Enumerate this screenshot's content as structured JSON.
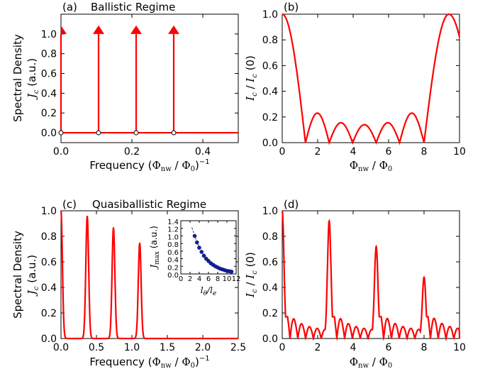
{
  "chart_data": [
    {
      "panel": "(a)",
      "title": "Ballistic Regime",
      "type": "stem",
      "xlabel": "Frequency (Φ_nw / Φ_0)^{-1}",
      "ylabel_lines": [
        "Spectral Density",
        "J_c (a.u.)"
      ],
      "xlim": [
        0,
        0.5
      ],
      "ylim": [
        -0.1,
        1.2
      ],
      "xticks": [
        "0.0",
        "0.2",
        "0.4"
      ],
      "yticks": [
        "0.0",
        "0.2",
        "0.4",
        "0.6",
        "0.8",
        "1.0"
      ],
      "x": [
        0,
        0.106,
        0.212,
        0.318
      ],
      "values": [
        1,
        1,
        1,
        1
      ],
      "color": "#ff0000"
    },
    {
      "panel": "(b)",
      "type": "line",
      "xlabel": "Φ_nw / Φ_0",
      "ylabel": "I_c / I_c (0)",
      "xlim": [
        0,
        10
      ],
      "ylim": [
        0,
        1.0
      ],
      "xticks": [
        "0",
        "2",
        "4",
        "6",
        "8",
        "10"
      ],
      "yticks": [
        "0.0",
        "0.2",
        "0.4",
        "0.6",
        "0.8",
        "1.0"
      ],
      "x": [
        0,
        0.4,
        0.8,
        1.31,
        1.5,
        2.0,
        2.5,
        2.65,
        3.0,
        3.3,
        3.7,
        3.97,
        4.4,
        4.6,
        4.9,
        5.3,
        5.6,
        6.0,
        6.3,
        6.62,
        7.0,
        7.5,
        8.0,
        8.5,
        9.0,
        9.4,
        9.8,
        10.0
      ],
      "y": [
        1.0,
        0.8,
        0.44,
        0.0,
        0.1,
        0.22,
        0.09,
        0.0,
        0.1,
        0.155,
        0.1,
        0.0,
        0.1,
        0.14,
        0.12,
        0.0,
        0.1,
        0.155,
        0.1,
        0.0,
        0.1,
        0.23,
        0.0,
        0.32,
        0.85,
        1.0,
        0.88,
        0.7
      ],
      "color": "#ff0000"
    },
    {
      "panel": "(c)",
      "title": "Quasiballistic Regime",
      "type": "line",
      "xlabel": "Frequency (Φ_nw / Φ_0)^{-1}",
      "ylabel_lines": [
        "Spectral Density",
        "J_c (a.u.)"
      ],
      "xlim": [
        0,
        2.5
      ],
      "ylim": [
        0,
        1.0
      ],
      "xticks": [
        "0.0",
        "0.5",
        "1.0",
        "1.5",
        "2.0",
        "2.5"
      ],
      "yticks": [
        "0.0",
        "0.2",
        "0.4",
        "0.6",
        "0.8",
        "1.0"
      ],
      "peaks": [
        {
          "x": 0.0,
          "height": 1.0
        },
        {
          "x": 0.37,
          "height": 0.96
        },
        {
          "x": 0.74,
          "height": 0.87
        },
        {
          "x": 1.11,
          "height": 0.75
        }
      ],
      "color": "#ff0000"
    },
    {
      "panel": "(c) inset",
      "type": "scatter",
      "xlabel": "l_θ / l_e",
      "ylabel": "J_max (a.u.)",
      "xlim": [
        0,
        12
      ],
      "ylim": [
        0,
        1.4
      ],
      "xticks": [
        "0",
        "2",
        "4",
        "6",
        "8",
        "10",
        "12"
      ],
      "yticks": [
        "0.0",
        "0.2",
        "0.4",
        "0.6",
        "0.8",
        "1.0",
        "1.2",
        "1.4"
      ],
      "x": [
        3,
        3.5,
        4,
        4.5,
        5,
        5.5,
        6,
        6.5,
        7,
        7.5,
        8,
        8.5,
        9,
        9.5,
        10,
        10.5,
        11
      ],
      "y": [
        1.0,
        0.83,
        0.69,
        0.58,
        0.48,
        0.4,
        0.34,
        0.28,
        0.24,
        0.2,
        0.17,
        0.14,
        0.12,
        0.1,
        0.08,
        0.07,
        0.06
      ],
      "fit_curve": {
        "x": [
          2.4,
          3,
          4,
          5,
          6,
          7,
          8,
          9,
          10,
          11
        ],
        "y": [
          1.22,
          1.0,
          0.69,
          0.48,
          0.34,
          0.24,
          0.17,
          0.12,
          0.08,
          0.06
        ]
      },
      "color": "#1020b0"
    },
    {
      "panel": "(d)",
      "type": "line",
      "xlabel": "Φ_nw / Φ_0",
      "ylabel": "I_c / I_c (0)",
      "xlim": [
        0,
        10
      ],
      "ylim": [
        0,
        1.0
      ],
      "xticks": [
        "0",
        "2",
        "4",
        "6",
        "8",
        "10"
      ],
      "yticks": [
        "0.0",
        "0.2",
        "0.4",
        "0.6",
        "0.8",
        "1.0"
      ],
      "peaks": [
        {
          "x": 0.0,
          "height": 1.0
        },
        {
          "x": 2.65,
          "height": 0.92
        },
        {
          "x": 5.3,
          "height": 0.72
        },
        {
          "x": 8.0,
          "height": 0.48
        }
      ],
      "background_oscillation": 0.3,
      "color": "#ff0000"
    }
  ]
}
